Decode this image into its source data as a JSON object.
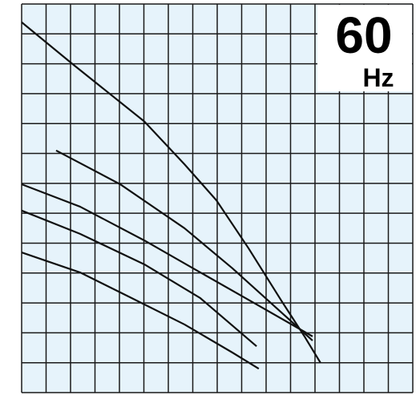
{
  "chart_data": {
    "type": "line",
    "title": "60",
    "subtitle": "Hz",
    "background": "#e6f3fb",
    "grid": true,
    "grid_color": "#1a1a1a",
    "xlim": [
      0,
      16
    ],
    "xticks": [
      0,
      1,
      2,
      3,
      4,
      5,
      6,
      7,
      8,
      9,
      10,
      11,
      12,
      13,
      14,
      15,
      16
    ],
    "ylim": [
      0,
      13
    ],
    "yticks": [
      0,
      1,
      2,
      3,
      4,
      5,
      6,
      7,
      8,
      9,
      10,
      11,
      12,
      13
    ],
    "series": [
      {
        "color": "#111111",
        "x": [
          0,
          2.07,
          5.02,
          6.66,
          7.97,
          9.28,
          10.62,
          11.57,
          12.23
        ],
        "values": [
          12.39,
          11.0,
          9.07,
          7.64,
          6.43,
          4.83,
          3.08,
          1.88,
          0.99
        ]
      },
      {
        "color": "#111111",
        "x": [
          1.41,
          4.03,
          6.66,
          8.62,
          10.26,
          11.9
        ],
        "values": [
          8.1,
          6.97,
          5.5,
          4.16,
          2.95,
          1.74
        ]
      },
      {
        "color": "#111111",
        "x": [
          0,
          2.39,
          5.02,
          7.31,
          9.61,
          11.9
        ],
        "values": [
          6.97,
          6.22,
          5.09,
          4.02,
          2.95,
          1.88
        ]
      },
      {
        "color": "#111111",
        "x": [
          0,
          2.39,
          5.02,
          7.31,
          9.61
        ],
        "values": [
          6.09,
          5.31,
          4.29,
          3.16,
          1.55
        ]
      },
      {
        "color": "#111111",
        "x": [
          0,
          2.39,
          4.36,
          6.66,
          8.62,
          9.7
        ],
        "values": [
          4.69,
          4.02,
          3.22,
          2.28,
          1.34,
          0.8
        ]
      }
    ]
  }
}
